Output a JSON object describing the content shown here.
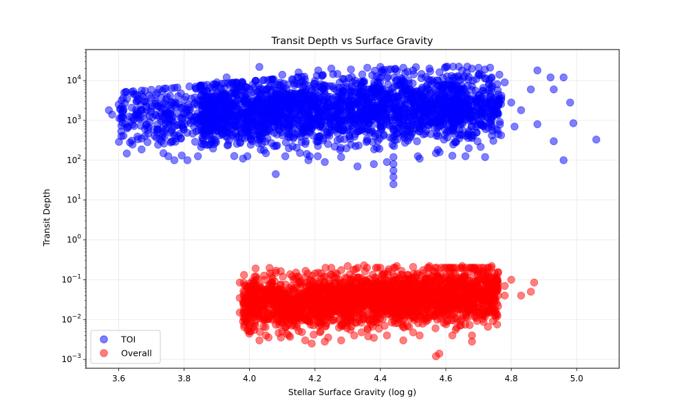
{
  "chart_data": {
    "type": "scatter",
    "title": "Transit Depth vs Surface Gravity",
    "xlabel": "Stellar Surface Gravity (log g)",
    "ylabel": "Transit Depth",
    "xlim": [
      3.5,
      5.13
    ],
    "ylim": [
      0.0006,
      60000
    ],
    "yscale": "log",
    "x_ticks": [
      "3.6",
      "3.8",
      "4.0",
      "4.2",
      "4.4",
      "4.6",
      "4.8",
      "5.0"
    ],
    "x_tick_values": [
      3.6,
      3.8,
      4.0,
      4.2,
      4.4,
      4.6,
      4.8,
      5.0
    ],
    "y_tick_values": [
      0.001,
      0.01,
      0.1,
      1,
      10,
      100,
      1000,
      10000
    ],
    "y_tick_exponents": [
      "−3",
      "−2",
      "−1",
      "0",
      "1",
      "2",
      "3",
      "4"
    ],
    "y_tick_base": "10",
    "grid": true,
    "legend_position": "lower-left",
    "series": [
      {
        "name": "TOI",
        "color": "#0000ff",
        "alpha": 0.5,
        "points": [
          [
            3.57,
            1800
          ],
          [
            3.58,
            1400
          ],
          [
            3.6,
            2500
          ],
          [
            3.61,
            2200
          ],
          [
            3.62,
            800
          ],
          [
            3.63,
            700
          ],
          [
            3.65,
            4500
          ],
          [
            3.66,
            3200
          ],
          [
            3.67,
            350
          ],
          [
            3.68,
            5500
          ],
          [
            3.7,
            2000
          ],
          [
            3.72,
            600
          ],
          [
            3.73,
            300
          ],
          [
            3.75,
            900
          ],
          [
            3.77,
            100
          ],
          [
            3.79,
            350
          ],
          [
            3.81,
            100
          ],
          [
            3.83,
            700
          ],
          [
            3.85,
            6000
          ],
          [
            3.88,
            250
          ],
          [
            3.9,
            9000
          ],
          [
            3.93,
            12000
          ],
          [
            3.96,
            400
          ],
          [
            3.98,
            110
          ],
          [
            4.01,
            8000
          ],
          [
            4.03,
            22000
          ],
          [
            4.05,
            150
          ],
          [
            4.08,
            45
          ],
          [
            4.1,
            14000
          ],
          [
            4.12,
            200
          ],
          [
            4.15,
            16000
          ],
          [
            4.18,
            100
          ],
          [
            4.21,
            18000
          ],
          [
            4.23,
            90
          ],
          [
            4.25,
            20000
          ],
          [
            4.28,
            120
          ],
          [
            4.31,
            19000
          ],
          [
            4.33,
            70
          ],
          [
            4.36,
            21000
          ],
          [
            4.38,
            80
          ],
          [
            4.4,
            22000
          ],
          [
            4.42,
            90
          ],
          [
            4.44,
            25
          ],
          [
            4.44,
            38
          ],
          [
            4.44,
            55
          ],
          [
            4.44,
            80
          ],
          [
            4.44,
            120
          ],
          [
            4.47,
            21000
          ],
          [
            4.5,
            18000
          ],
          [
            4.52,
            110
          ],
          [
            4.55,
            20000
          ],
          [
            4.57,
            150
          ],
          [
            4.6,
            22000
          ],
          [
            4.62,
            130
          ],
          [
            4.65,
            18000
          ],
          [
            4.67,
            200
          ],
          [
            4.7,
            21000
          ],
          [
            4.72,
            120
          ],
          [
            4.74,
            12000
          ],
          [
            4.76,
            450
          ],
          [
            4.78,
            9000
          ],
          [
            4.8,
            2800
          ],
          [
            4.81,
            700
          ],
          [
            4.83,
            1800
          ],
          [
            4.86,
            6000
          ],
          [
            4.88,
            18000
          ],
          [
            4.88,
            800
          ],
          [
            4.92,
            12000
          ],
          [
            4.93,
            6000
          ],
          [
            4.93,
            300
          ],
          [
            4.96,
            12000
          ],
          [
            4.96,
            100
          ],
          [
            4.98,
            2800
          ],
          [
            4.99,
            850
          ],
          [
            5.06,
            330
          ]
        ]
      },
      {
        "name": "Overall",
        "color": "#ff0000",
        "alpha": 0.5,
        "points": [
          [
            3.97,
            0.085
          ],
          [
            3.97,
            0.035
          ],
          [
            3.97,
            0.015
          ],
          [
            3.98,
            0.009
          ],
          [
            3.99,
            0.07
          ],
          [
            4.0,
            0.005
          ],
          [
            4.02,
            0.12
          ],
          [
            4.03,
            0.003
          ],
          [
            4.05,
            0.004
          ],
          [
            4.08,
            0.15
          ],
          [
            4.1,
            0.005
          ],
          [
            4.12,
            0.004
          ],
          [
            4.15,
            0.12
          ],
          [
            4.17,
            0.003
          ],
          [
            4.19,
            0.0025
          ],
          [
            4.21,
            0.15
          ],
          [
            4.23,
            0.0028
          ],
          [
            4.25,
            0.2
          ],
          [
            4.28,
            0.003
          ],
          [
            4.3,
            0.22
          ],
          [
            4.32,
            0.004
          ],
          [
            4.35,
            0.23
          ],
          [
            4.38,
            0.0035
          ],
          [
            4.4,
            0.2
          ],
          [
            4.42,
            0.004
          ],
          [
            4.45,
            0.22
          ],
          [
            4.47,
            0.003
          ],
          [
            4.5,
            0.21
          ],
          [
            4.52,
            0.004
          ],
          [
            4.55,
            0.22
          ],
          [
            4.57,
            0.0012
          ],
          [
            4.58,
            0.0014
          ],
          [
            4.6,
            0.2
          ],
          [
            4.62,
            0.004
          ],
          [
            4.65,
            0.22
          ],
          [
            4.68,
            0.0028
          ],
          [
            4.68,
            0.004
          ],
          [
            4.7,
            0.2
          ],
          [
            4.72,
            0.012
          ],
          [
            4.74,
            0.22
          ],
          [
            4.76,
            0.15
          ],
          [
            4.78,
            0.07
          ],
          [
            4.78,
            0.04
          ],
          [
            4.8,
            0.1
          ],
          [
            4.83,
            0.04
          ],
          [
            4.86,
            0.05
          ],
          [
            4.87,
            0.085
          ]
        ]
      }
    ]
  }
}
